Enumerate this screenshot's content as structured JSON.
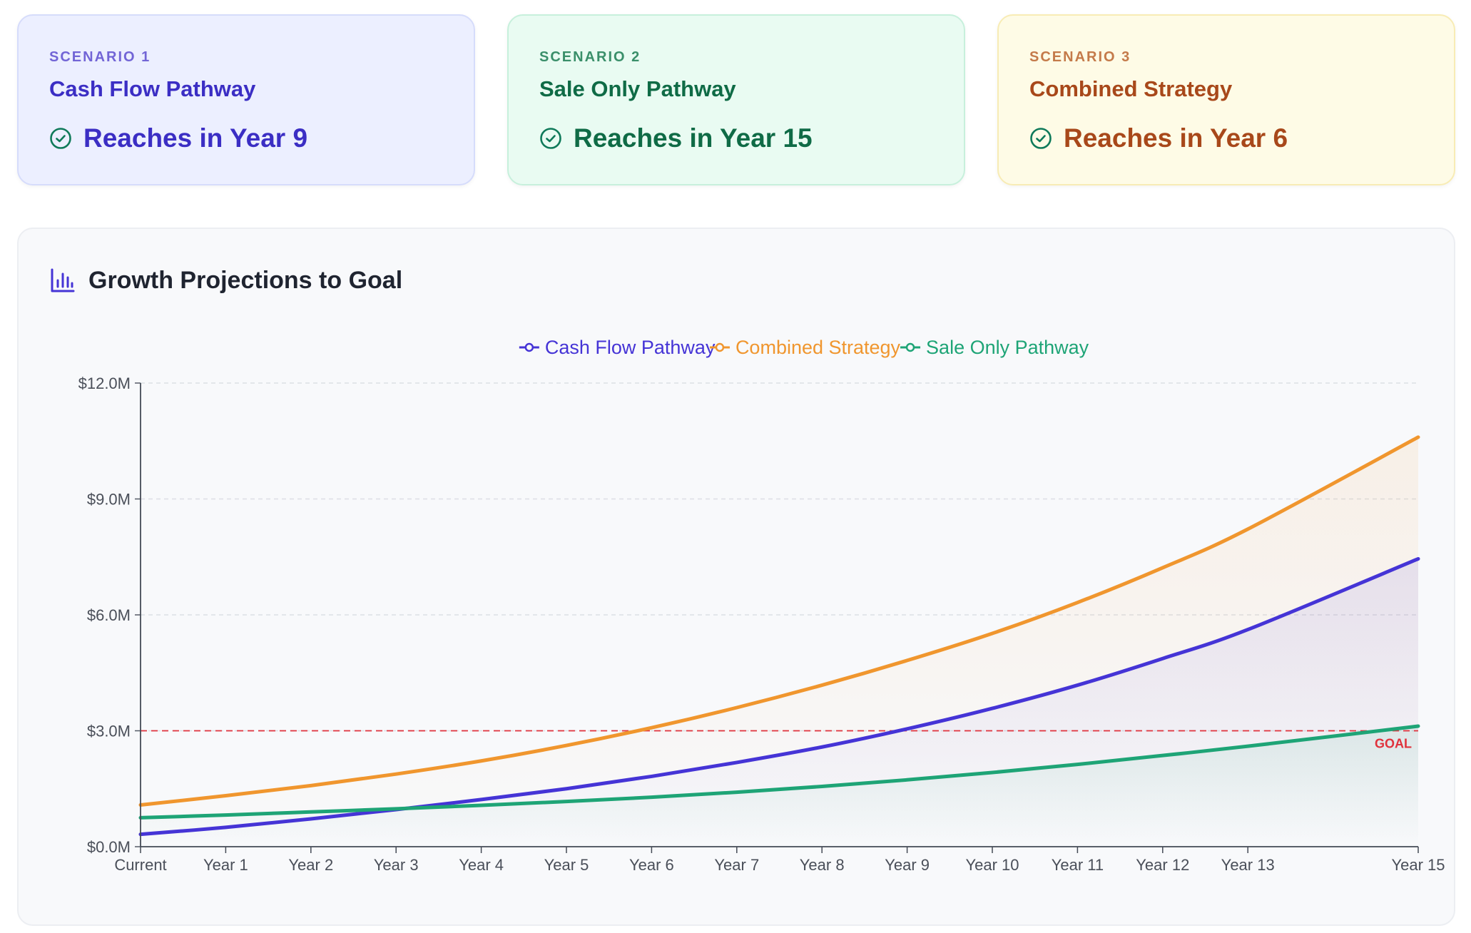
{
  "scenarios": [
    {
      "eyebrow": "SCENARIO 1",
      "title": "Cash Flow Pathway",
      "status": "Reaches in Year 9",
      "icon": "check-circle-icon",
      "color": "#3b2ec4"
    },
    {
      "eyebrow": "SCENARIO 2",
      "title": "Sale Only Pathway",
      "status": "Reaches in Year 15",
      "icon": "check-circle-icon",
      "color": "#0f6b46"
    },
    {
      "eyebrow": "SCENARIO 3",
      "title": "Combined Strategy",
      "status": "Reaches in Year 6",
      "icon": "check-circle-icon",
      "color": "#a8481a"
    }
  ],
  "panel": {
    "title": "Growth Projections to Goal",
    "icon": "bar-chart-icon"
  },
  "chart_data": {
    "type": "area",
    "title": "",
    "xlabel": "",
    "ylabel": "",
    "categories": [
      "Current",
      "Year 1",
      "Year 2",
      "Year 3",
      "Year 4",
      "Year 5",
      "Year 6",
      "Year 7",
      "Year 8",
      "Year 9",
      "Year 10",
      "Year 11",
      "Year 12",
      "Year 13",
      "Year 15"
    ],
    "x": [
      0,
      1,
      2,
      3,
      4,
      5,
      6,
      7,
      8,
      9,
      10,
      11,
      12,
      13,
      15
    ],
    "ylim": [
      0,
      12
    ],
    "yticks": [
      0,
      3,
      6,
      9,
      12
    ],
    "ytick_labels": [
      "$0.0M",
      "$3.0M",
      "$6.0M",
      "$9.0M",
      "$12.0M"
    ],
    "grid": true,
    "legend": "top-center",
    "goal": {
      "value": 3.0,
      "label": "GOAL",
      "color": "#e0323c"
    },
    "series": [
      {
        "name": "Cash Flow Pathway",
        "color": "#4534d6",
        "values": [
          0.32,
          0.5,
          0.72,
          0.96,
          1.22,
          1.5,
          1.82,
          2.18,
          2.58,
          3.05,
          3.58,
          4.18,
          4.87,
          5.62,
          7.45
        ]
      },
      {
        "name": "Combined Strategy",
        "color": "#f0962e",
        "values": [
          1.08,
          1.32,
          1.58,
          1.88,
          2.22,
          2.62,
          3.08,
          3.6,
          4.18,
          4.82,
          5.52,
          6.32,
          7.22,
          8.22,
          10.6
        ]
      },
      {
        "name": "Sale Only Pathway",
        "color": "#1ea476",
        "values": [
          0.75,
          0.82,
          0.9,
          0.98,
          1.07,
          1.17,
          1.28,
          1.41,
          1.56,
          1.73,
          1.92,
          2.13,
          2.36,
          2.6,
          3.12
        ]
      }
    ]
  }
}
